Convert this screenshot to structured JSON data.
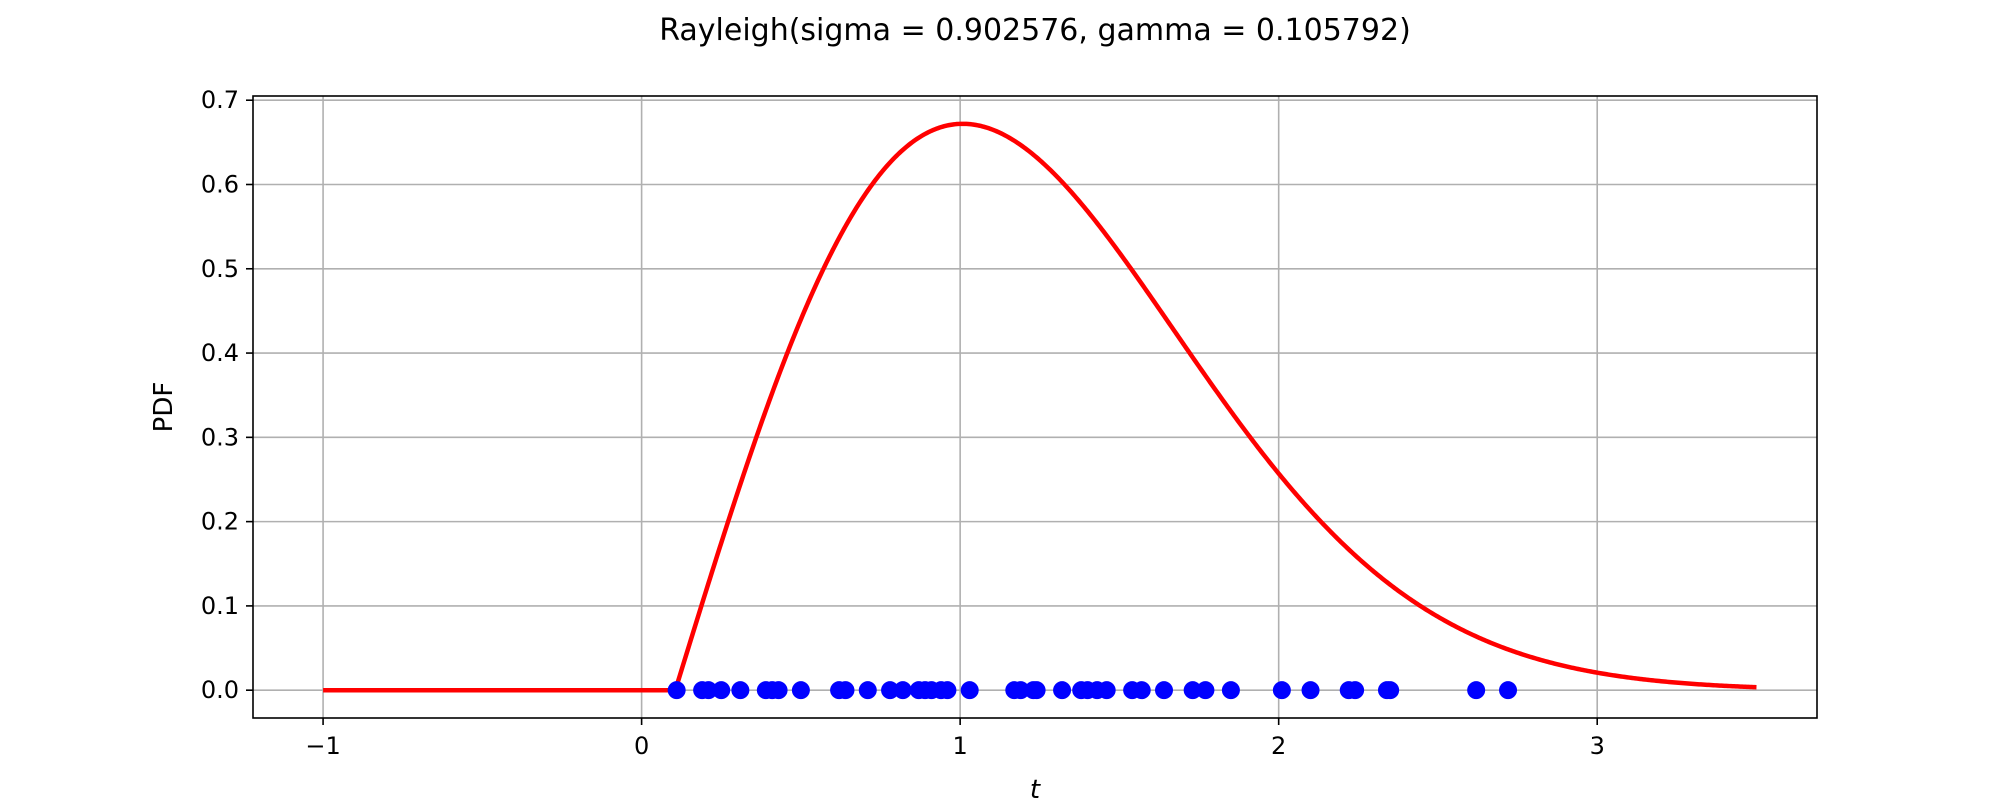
{
  "chart_data": {
    "type": "line",
    "title": "Rayleigh(sigma = 0.902576, gamma = 0.105792)",
    "xlabel": "t",
    "ylabel": "PDF",
    "xlim": [
      -1.22,
      3.69
    ],
    "ylim": [
      -0.033,
      0.705
    ],
    "grid": true,
    "x_ticks": [
      -1,
      0,
      1,
      2,
      3
    ],
    "x_tick_labels": [
      "−1",
      "0",
      "1",
      "2",
      "3"
    ],
    "y_ticks": [
      0.0,
      0.1,
      0.2,
      0.3,
      0.4,
      0.5,
      0.6,
      0.7
    ],
    "y_tick_labels": [
      "0.0",
      "0.1",
      "0.2",
      "0.3",
      "0.4",
      "0.5",
      "0.6",
      "0.7"
    ],
    "pdf_params": {
      "sigma": 0.902576,
      "gamma": 0.105792
    },
    "curve": {
      "x_start": -1.0,
      "x_end": 3.5,
      "color": "#ff0000"
    },
    "samples": {
      "color": "#0000ff",
      "x": [
        0.11,
        0.19,
        0.21,
        0.25,
        0.31,
        0.39,
        0.41,
        0.43,
        0.5,
        0.62,
        0.64,
        0.71,
        0.78,
        0.82,
        0.87,
        0.89,
        0.91,
        0.94,
        0.96,
        1.03,
        1.17,
        1.19,
        1.23,
        1.24,
        1.32,
        1.38,
        1.4,
        1.43,
        1.46,
        1.54,
        1.57,
        1.64,
        1.73,
        1.77,
        1.85,
        2.01,
        2.1,
        2.22,
        2.24,
        2.34,
        2.35,
        2.62,
        2.72
      ],
      "y": 0.0
    }
  }
}
